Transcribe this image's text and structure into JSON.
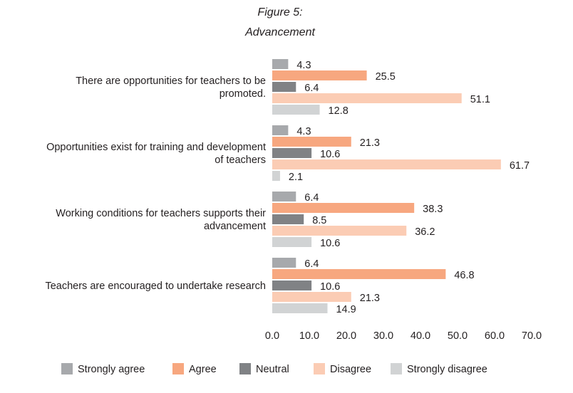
{
  "chart_data": {
    "type": "bar",
    "orientation": "horizontal",
    "title": "Figure 5:",
    "subtitle": "Advancement",
    "categories": [
      [
        "There are opportunities for teachers to be",
        "promoted."
      ],
      [
        "Opportunities exist for training and development",
        "of teachers"
      ],
      [
        "Working conditions for teachers supports their",
        "advancement"
      ],
      [
        "Teachers are encouraged to undertake research"
      ]
    ],
    "series": [
      {
        "name": "Strongly agree",
        "color": "#a7a9ac",
        "values": [
          4.3,
          4.3,
          6.4,
          6.4
        ]
      },
      {
        "name": "Agree",
        "color": "#f7a77f",
        "values": [
          25.5,
          21.3,
          38.3,
          46.8
        ]
      },
      {
        "name": "Neutral",
        "color": "#808285",
        "values": [
          6.4,
          10.6,
          8.5,
          10.6
        ]
      },
      {
        "name": "Disagree",
        "color": "#fbccb4",
        "values": [
          51.1,
          61.7,
          36.2,
          21.3
        ]
      },
      {
        "name": "Strongly disagree",
        "color": "#d1d3d4",
        "values": [
          12.8,
          2.1,
          10.6,
          14.9
        ]
      }
    ],
    "value_labels": [
      [
        "4.3",
        "25.5",
        "6.4",
        "51.1",
        "12.8"
      ],
      [
        "4.3",
        "21.3",
        "10.6",
        "61.7",
        "2.1"
      ],
      [
        "6.4",
        "38.3",
        "8.5",
        "36.2",
        "10.6"
      ],
      [
        "6.4",
        "46.8",
        "10.6",
        "21.3",
        "14.9"
      ]
    ],
    "xlim": [
      0,
      70
    ],
    "xticks": [
      "0.0",
      "10.0",
      "20.0",
      "30.0",
      "40.0",
      "50.0",
      "60.0",
      "70.0"
    ],
    "grid": false,
    "legend_position": "bottom"
  }
}
